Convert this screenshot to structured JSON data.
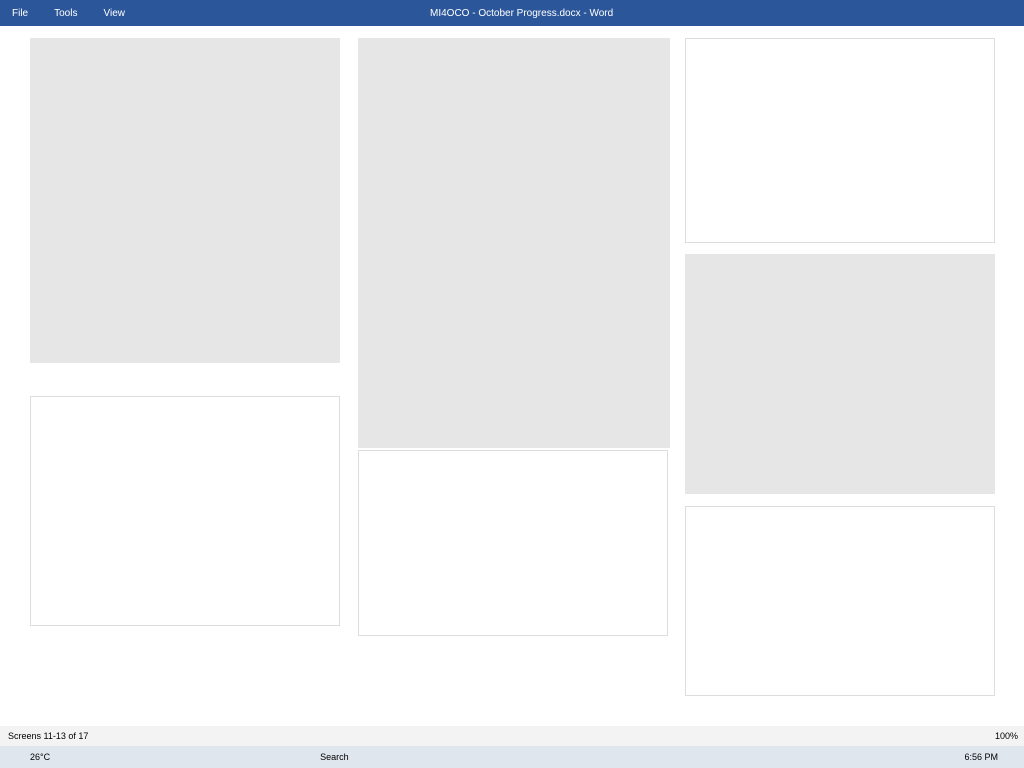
{
  "app": {
    "title": "MI4OCO - October Progress.docx - Word",
    "menu": [
      "File",
      "Tools",
      "View"
    ]
  },
  "status": {
    "screens": "Screens 11-13 of 17",
    "zoom": "100%"
  },
  "taskbar": {
    "temp": "26°C",
    "search": "Search",
    "time": "6:56 PM"
  }
}
